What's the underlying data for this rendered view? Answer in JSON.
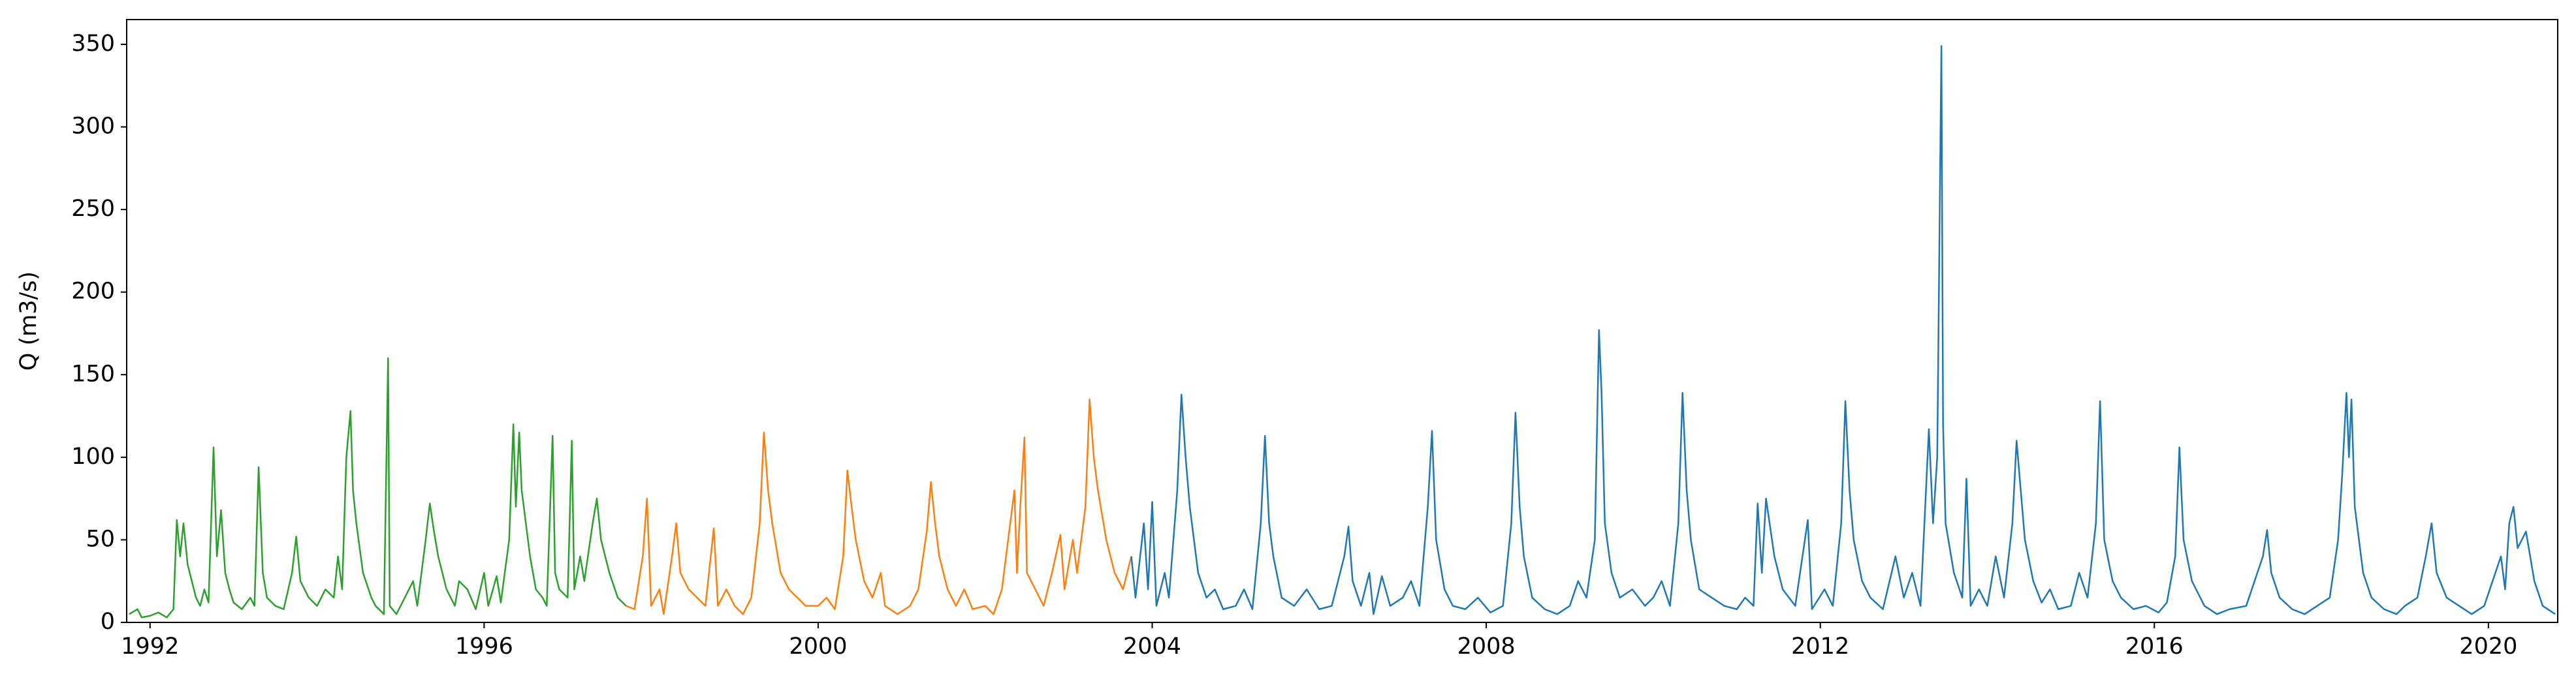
{
  "chart_data": {
    "type": "line",
    "y_label": "Q (m3/s)",
    "xlim": [
      1991.72,
      2020.83
    ],
    "ylim": [
      0,
      365
    ],
    "xticks": [
      1992,
      1996,
      2000,
      2004,
      2008,
      2012,
      2016,
      2020
    ],
    "yticks": [
      0,
      50,
      100,
      150,
      200,
      250,
      300,
      350
    ],
    "grid": false,
    "series": [
      {
        "color": "#2ca02c",
        "x": [
          1991.75,
          1991.85,
          1991.9,
          1992.0,
          1992.1,
          1992.2,
          1992.28,
          1992.32,
          1992.36,
          1992.4,
          1992.45,
          1992.5,
          1992.55,
          1992.6,
          1992.65,
          1992.7,
          1992.76,
          1992.8,
          1992.85,
          1992.9,
          1992.95,
          1993.0,
          1993.1,
          1993.2,
          1993.25,
          1993.3,
          1993.35,
          1993.4,
          1993.5,
          1993.6,
          1993.7,
          1993.75,
          1993.8,
          1993.9,
          1994.0,
          1994.1,
          1994.2,
          1994.25,
          1994.3,
          1994.35,
          1994.4,
          1994.43,
          1994.47,
          1994.55,
          1994.65,
          1994.7,
          1994.8,
          1994.85,
          1994.87,
          1994.95,
          1995.05,
          1995.15,
          1995.2,
          1995.3,
          1995.35,
          1995.4,
          1995.45,
          1995.55,
          1995.65,
          1995.7,
          1995.8,
          1995.9,
          1996.0,
          1996.05,
          1996.15,
          1996.2,
          1996.3,
          1996.35,
          1996.38,
          1996.42,
          1996.45,
          1996.5,
          1996.55,
          1996.62,
          1996.7,
          1996.75,
          1996.82,
          1996.85,
          1996.9,
          1997.0,
          1997.05,
          1997.08,
          1997.15,
          1997.2,
          1997.3,
          1997.35,
          1997.4,
          1997.5,
          1997.6,
          1997.7
        ],
        "values": [
          5,
          8,
          3,
          4,
          6,
          3,
          8,
          62,
          40,
          60,
          35,
          25,
          15,
          10,
          20,
          12,
          106,
          40,
          68,
          30,
          20,
          12,
          8,
          15,
          10,
          94,
          30,
          15,
          10,
          8,
          30,
          52,
          25,
          15,
          10,
          20,
          15,
          40,
          20,
          100,
          128,
          80,
          60,
          30,
          15,
          10,
          5,
          160,
          10,
          5,
          15,
          25,
          10,
          50,
          72,
          55,
          40,
          20,
          10,
          25,
          20,
          8,
          30,
          10,
          28,
          12,
          50,
          120,
          70,
          115,
          80,
          60,
          40,
          20,
          15,
          10,
          113,
          30,
          20,
          15,
          110,
          20,
          40,
          25,
          60,
          75,
          50,
          30,
          15,
          10
        ]
      },
      {
        "color": "#ff7f0e",
        "x": [
          1997.7,
          1997.8,
          1997.9,
          1997.95,
          1998.0,
          1998.1,
          1998.15,
          1998.25,
          1998.3,
          1998.35,
          1998.45,
          1998.55,
          1998.65,
          1998.75,
          1998.8,
          1998.9,
          1999.0,
          1999.1,
          1999.2,
          1999.3,
          1999.35,
          1999.4,
          1999.45,
          1999.55,
          1999.65,
          1999.75,
          1999.85,
          2000.0,
          2000.1,
          2000.2,
          2000.3,
          2000.35,
          2000.4,
          2000.45,
          2000.55,
          2000.65,
          2000.75,
          2000.8,
          2000.95,
          2001.1,
          2001.2,
          2001.3,
          2001.35,
          2001.4,
          2001.45,
          2001.55,
          2001.65,
          2001.75,
          2001.85,
          2002.0,
          2002.1,
          2002.2,
          2002.3,
          2002.35,
          2002.38,
          2002.42,
          2002.47,
          2002.5,
          2002.6,
          2002.7,
          2002.8,
          2002.9,
          2002.95,
          2003.05,
          2003.1,
          2003.2,
          2003.25,
          2003.3,
          2003.35,
          2003.45,
          2003.55,
          2003.65,
          2003.75
        ],
        "values": [
          10,
          8,
          40,
          75,
          10,
          20,
          5,
          40,
          60,
          30,
          20,
          15,
          10,
          57,
          10,
          20,
          10,
          5,
          15,
          60,
          115,
          80,
          60,
          30,
          20,
          15,
          10,
          10,
          15,
          8,
          40,
          92,
          70,
          50,
          25,
          15,
          30,
          10,
          5,
          10,
          20,
          55,
          85,
          60,
          40,
          20,
          10,
          20,
          8,
          10,
          5,
          20,
          60,
          80,
          30,
          70,
          112,
          30,
          20,
          10,
          30,
          53,
          20,
          50,
          30,
          70,
          135,
          100,
          80,
          50,
          30,
          20,
          40
        ]
      },
      {
        "color": "#1f77b4",
        "x": [
          2003.75,
          2003.8,
          2003.9,
          2003.95,
          2004.0,
          2004.05,
          2004.15,
          2004.2,
          2004.3,
          2004.35,
          2004.4,
          2004.45,
          2004.55,
          2004.65,
          2004.75,
          2004.85,
          2005.0,
          2005.1,
          2005.2,
          2005.3,
          2005.35,
          2005.4,
          2005.45,
          2005.55,
          2005.7,
          2005.85,
          2006.0,
          2006.15,
          2006.25,
          2006.3,
          2006.35,
          2006.4,
          2006.5,
          2006.6,
          2006.65,
          2006.75,
          2006.85,
          2007.0,
          2007.1,
          2007.2,
          2007.3,
          2007.35,
          2007.4,
          2007.5,
          2007.6,
          2007.75,
          2007.9,
          2008.05,
          2008.2,
          2008.3,
          2008.35,
          2008.4,
          2008.45,
          2008.55,
          2008.7,
          2008.85,
          2009.0,
          2009.1,
          2009.2,
          2009.3,
          2009.35,
          2009.38,
          2009.42,
          2009.5,
          2009.6,
          2009.75,
          2009.9,
          2010.0,
          2010.1,
          2010.2,
          2010.3,
          2010.35,
          2010.4,
          2010.45,
          2010.55,
          2010.7,
          2010.85,
          2011.0,
          2011.1,
          2011.2,
          2011.25,
          2011.3,
          2011.35,
          2011.45,
          2011.55,
          2011.7,
          2011.85,
          2011.9,
          2012.05,
          2012.15,
          2012.25,
          2012.3,
          2012.35,
          2012.4,
          2012.5,
          2012.6,
          2012.75,
          2012.9,
          2013.0,
          2013.1,
          2013.2,
          2013.3,
          2013.35,
          2013.4,
          2013.45,
          2013.47,
          2013.5,
          2013.6,
          2013.7,
          2013.75,
          2013.8,
          2013.9,
          2014.0,
          2014.1,
          2014.2,
          2014.3,
          2014.35,
          2014.4,
          2014.45,
          2014.55,
          2014.65,
          2014.75,
          2014.85,
          2015.0,
          2015.1,
          2015.2,
          2015.3,
          2015.35,
          2015.4,
          2015.5,
          2015.6,
          2015.75,
          2015.9,
          2016.05,
          2016.15,
          2016.25,
          2016.3,
          2016.35,
          2016.45,
          2016.6,
          2016.75,
          2016.9,
          2017.1,
          2017.2,
          2017.3,
          2017.35,
          2017.4,
          2017.5,
          2017.65,
          2017.8,
          2017.95,
          2018.1,
          2018.2,
          2018.25,
          2018.3,
          2018.33,
          2018.36,
          2018.4,
          2018.5,
          2018.6,
          2018.75,
          2018.9,
          2019.0,
          2019.15,
          2019.25,
          2019.32,
          2019.38,
          2019.5,
          2019.65,
          2019.8,
          2019.95,
          2020.05,
          2020.15,
          2020.2,
          2020.25,
          2020.3,
          2020.35,
          2020.45,
          2020.55,
          2020.65,
          2020.8
        ],
        "values": [
          40,
          15,
          60,
          20,
          73,
          10,
          30,
          15,
          80,
          138,
          100,
          70,
          30,
          15,
          20,
          8,
          10,
          20,
          8,
          60,
          113,
          60,
          40,
          15,
          10,
          20,
          8,
          10,
          30,
          40,
          58,
          25,
          10,
          30,
          5,
          28,
          10,
          15,
          25,
          10,
          70,
          116,
          50,
          20,
          10,
          8,
          15,
          6,
          10,
          60,
          127,
          70,
          40,
          15,
          8,
          5,
          10,
          25,
          15,
          50,
          177,
          140,
          60,
          30,
          15,
          20,
          10,
          15,
          25,
          10,
          60,
          139,
          80,
          50,
          20,
          15,
          10,
          8,
          15,
          10,
          72,
          30,
          75,
          40,
          20,
          10,
          62,
          8,
          20,
          10,
          60,
          134,
          80,
          50,
          25,
          15,
          8,
          40,
          15,
          30,
          10,
          117,
          60,
          100,
          349,
          120,
          60,
          30,
          15,
          87,
          10,
          20,
          10,
          40,
          15,
          60,
          110,
          80,
          50,
          25,
          12,
          20,
          8,
          10,
          30,
          15,
          60,
          134,
          50,
          25,
          15,
          8,
          10,
          6,
          12,
          40,
          106,
          50,
          25,
          10,
          5,
          8,
          10,
          25,
          40,
          56,
          30,
          15,
          8,
          5,
          10,
          15,
          50,
          90,
          139,
          100,
          135,
          70,
          30,
          15,
          8,
          5,
          10,
          15,
          40,
          60,
          30,
          15,
          10,
          5,
          10,
          25,
          40,
          20,
          60,
          70,
          45,
          55,
          25,
          10,
          5
        ]
      }
    ]
  }
}
